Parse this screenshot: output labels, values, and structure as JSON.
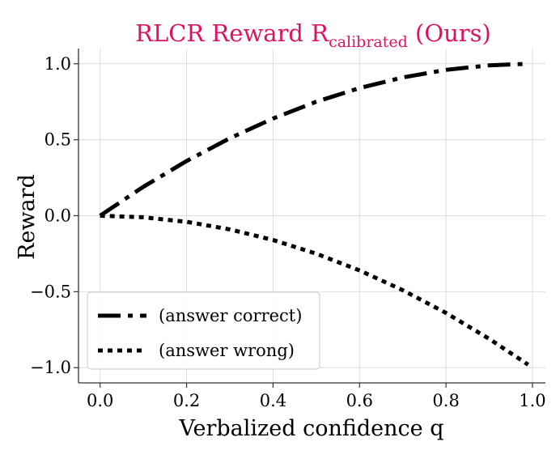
{
  "chart_data": {
    "type": "line",
    "title": {
      "main": "RLCR Reward R",
      "subscript": "calibrated",
      "suffix": " (Ours)",
      "color": "#e0115f"
    },
    "xlabel": "Verbalized confidence q",
    "ylabel": "Reward",
    "xlim": [
      -0.05,
      1.03
    ],
    "ylim": [
      -1.1,
      1.1
    ],
    "x_ticks": [
      0.0,
      0.2,
      0.4,
      0.6,
      0.8,
      1.0
    ],
    "x_tick_labels": [
      "0.0",
      "0.2",
      "0.4",
      "0.6",
      "0.8",
      "1.0"
    ],
    "y_ticks": [
      -1.0,
      -0.5,
      0.0,
      0.5,
      1.0
    ],
    "y_tick_labels": [
      "−1.0",
      "−0.5",
      "0.0",
      "0.5",
      "1.0"
    ],
    "grid": true,
    "legend_position": "lower-left",
    "series": [
      {
        "name": "(answer correct)",
        "style": "dashdot",
        "color": "#000000",
        "x": [
          0.0,
          0.1,
          0.2,
          0.3,
          0.4,
          0.5,
          0.6,
          0.7,
          0.8,
          0.9,
          0.99
        ],
        "y": [
          0.0,
          0.19,
          0.36,
          0.51,
          0.64,
          0.75,
          0.84,
          0.91,
          0.96,
          0.99,
          1.0
        ]
      },
      {
        "name": "(answer wrong)",
        "style": "dotted",
        "color": "#000000",
        "x": [
          0.0,
          0.1,
          0.2,
          0.3,
          0.4,
          0.5,
          0.6,
          0.7,
          0.8,
          0.9,
          0.99
        ],
        "y": [
          0.0,
          -0.01,
          -0.04,
          -0.09,
          -0.16,
          -0.25,
          -0.36,
          -0.49,
          -0.64,
          -0.81,
          -0.98
        ]
      }
    ]
  }
}
